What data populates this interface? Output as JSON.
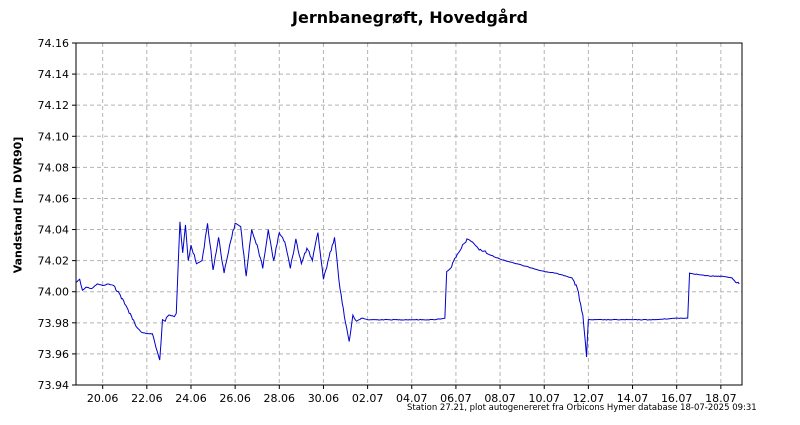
{
  "chart_data": {
    "type": "line",
    "title": "Jernbanegrøft, Hovedgård",
    "xlabel": "",
    "ylabel": "Vandstand [m DVR90]",
    "ylim": [
      73.94,
      74.16
    ],
    "yticks": [
      "74.16",
      "74.14",
      "74.12",
      "74.10",
      "74.08",
      "74.06",
      "74.04",
      "74.02",
      "74.00",
      "73.98",
      "73.96",
      "73.94"
    ],
    "xlim": [
      "2025-06-18T19:00",
      "2025-07-18T23:00"
    ],
    "xticks": [
      {
        "date": "2025-06-20",
        "label": "20.06"
      },
      {
        "date": "2025-06-22",
        "label": "22.06"
      },
      {
        "date": "2025-06-24",
        "label": "24.06"
      },
      {
        "date": "2025-06-26",
        "label": "26.06"
      },
      {
        "date": "2025-06-28",
        "label": "28.06"
      },
      {
        "date": "2025-06-30",
        "label": "30.06"
      },
      {
        "date": "2025-07-02",
        "label": "02.07"
      },
      {
        "date": "2025-07-04",
        "label": "04.07"
      },
      {
        "date": "2025-07-06",
        "label": "06.07"
      },
      {
        "date": "2025-07-08",
        "label": "08.07"
      },
      {
        "date": "2025-07-10",
        "label": "10.07"
      },
      {
        "date": "2025-07-12",
        "label": "12.07"
      },
      {
        "date": "2025-07-14",
        "label": "14.07"
      },
      {
        "date": "2025-07-16",
        "label": "16.07"
      },
      {
        "date": "2025-07-18",
        "label": "18.07"
      }
    ],
    "grid": true,
    "series_color": "#0000cc",
    "series": [
      {
        "x": [
          "2025-06-18T19:00",
          "2025-06-18T23:00",
          "2025-06-19T02:00",
          "2025-06-19T06:00",
          "2025-06-19T12:00",
          "2025-06-19T18:00",
          "2025-06-20T00:00",
          "2025-06-20T06:00",
          "2025-06-20T12:00",
          "2025-06-20T18:00",
          "2025-06-21T00:00",
          "2025-06-21T06:00",
          "2025-06-21T12:00",
          "2025-06-21T18:00",
          "2025-06-22T00:00",
          "2025-06-22T06:00",
          "2025-06-22T10:00",
          "2025-06-22T14:00",
          "2025-06-22T17:00",
          "2025-06-22T20:00",
          "2025-06-23T00:00",
          "2025-06-23T06:00",
          "2025-06-23T08:00",
          "2025-06-23T12:00",
          "2025-06-23T15:00",
          "2025-06-23T18:00",
          "2025-06-23T21:00",
          "2025-06-24T00:00",
          "2025-06-24T06:00",
          "2025-06-24T12:00",
          "2025-06-24T18:00",
          "2025-06-25T00:00",
          "2025-06-25T06:00",
          "2025-06-25T12:00",
          "2025-06-25T18:00",
          "2025-06-26T00:00",
          "2025-06-26T06:00",
          "2025-06-26T12:00",
          "2025-06-26T18:00",
          "2025-06-27T00:00",
          "2025-06-27T06:00",
          "2025-06-27T12:00",
          "2025-06-27T18:00",
          "2025-06-28T00:00",
          "2025-06-28T06:00",
          "2025-06-28T12:00",
          "2025-06-28T18:00",
          "2025-06-29T00:00",
          "2025-06-29T06:00",
          "2025-06-29T12:00",
          "2025-06-29T18:00",
          "2025-06-30T00:00",
          "2025-06-30T06:00",
          "2025-06-30T12:00",
          "2025-06-30T18:00",
          "2025-07-01T00:00",
          "2025-07-01T04:00",
          "2025-07-01T08:00",
          "2025-07-01T12:00",
          "2025-07-01T18:00",
          "2025-07-02T00:00",
          "2025-07-03T00:00",
          "2025-07-04T00:00",
          "2025-07-05T00:00",
          "2025-07-05T12:00",
          "2025-07-05T14:00",
          "2025-07-05T18:00",
          "2025-07-06T00:00",
          "2025-07-06T06:00",
          "2025-07-06T12:00",
          "2025-07-06T18:00",
          "2025-07-07T00:00",
          "2025-07-07T12:00",
          "2025-07-08T00:00",
          "2025-07-08T12:00",
          "2025-07-09T00:00",
          "2025-07-09T12:00",
          "2025-07-10T00:00",
          "2025-07-10T12:00",
          "2025-07-11T00:00",
          "2025-07-11T06:00",
          "2025-07-11T12:00",
          "2025-07-11T18:00",
          "2025-07-11T20:00",
          "2025-07-11T22:00",
          "2025-07-12T00:00",
          "2025-07-13T00:00",
          "2025-07-14T00:00",
          "2025-07-15T00:00",
          "2025-07-16T00:00",
          "2025-07-16T12:00",
          "2025-07-16T14:00",
          "2025-07-17T00:00",
          "2025-07-17T12:00",
          "2025-07-18T00:00",
          "2025-07-18T12:00",
          "2025-07-18T20:00"
        ],
        "y": [
          74.006,
          74.008,
          74.001,
          74.003,
          74.002,
          74.005,
          74.004,
          74.005,
          74.004,
          73.999,
          73.992,
          73.986,
          73.978,
          73.974,
          73.973,
          73.973,
          73.964,
          73.956,
          73.982,
          73.981,
          73.985,
          73.984,
          73.986,
          74.045,
          74.025,
          74.043,
          74.02,
          74.03,
          74.018,
          74.02,
          74.044,
          74.014,
          74.035,
          74.012,
          74.03,
          74.044,
          74.042,
          74.01,
          74.04,
          74.03,
          74.015,
          74.04,
          74.02,
          74.038,
          74.032,
          74.015,
          74.034,
          74.018,
          74.028,
          74.02,
          74.038,
          74.008,
          74.022,
          74.035,
          74.002,
          73.98,
          73.968,
          73.985,
          73.981,
          73.983,
          73.982,
          73.982,
          73.982,
          73.982,
          73.983,
          74.013,
          74.015,
          74.022,
          74.028,
          74.034,
          74.032,
          74.028,
          74.024,
          74.021,
          74.019,
          74.017,
          74.015,
          74.013,
          74.012,
          74.01,
          74.009,
          74.002,
          73.985,
          73.972,
          73.958,
          73.982,
          73.982,
          73.982,
          73.982,
          73.983,
          73.983,
          74.012,
          74.011,
          74.01,
          74.01,
          74.009,
          74.005
        ]
      }
    ],
    "footnote": "Station 27.21, plot autogenereret fra Orbicons Hymer database 18-07-2025 09:31"
  }
}
